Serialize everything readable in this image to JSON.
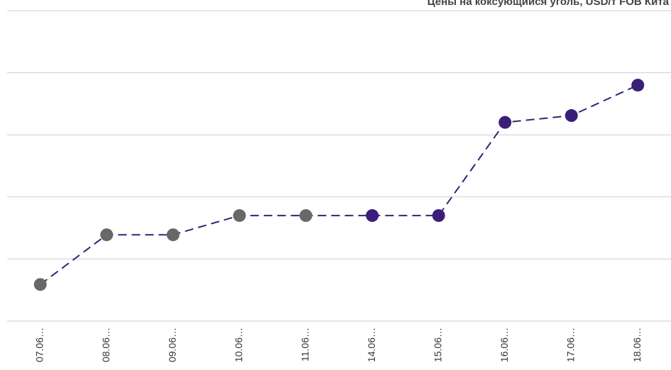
{
  "chart_data": {
    "type": "line",
    "title": "Цены на коксующийся уголь, USD/т FOB Кита",
    "categories": [
      "07.06…",
      "08.06…",
      "09.06…",
      "10.06…",
      "11.06…",
      "14.06…",
      "15.06…",
      "16.06…",
      "17.06…",
      "18.06…"
    ],
    "series": [
      {
        "color": "#3a1f7a",
        "values": [
          0.59,
          1.39,
          1.39,
          1.7,
          1.7,
          1.7,
          1.7,
          3.2,
          3.31,
          3.8
        ],
        "point_colors": [
          "#686868",
          "#686868",
          "#686868",
          "#686868",
          "#686868",
          "#3a1f7a",
          "#3a1f7a",
          "#3a1f7a",
          "#3a1f7a",
          "#3a1f7a"
        ]
      }
    ],
    "ylim": [
      0,
      5
    ],
    "yticks": [
      0,
      1,
      2,
      3,
      4,
      5
    ],
    "grid": true
  }
}
